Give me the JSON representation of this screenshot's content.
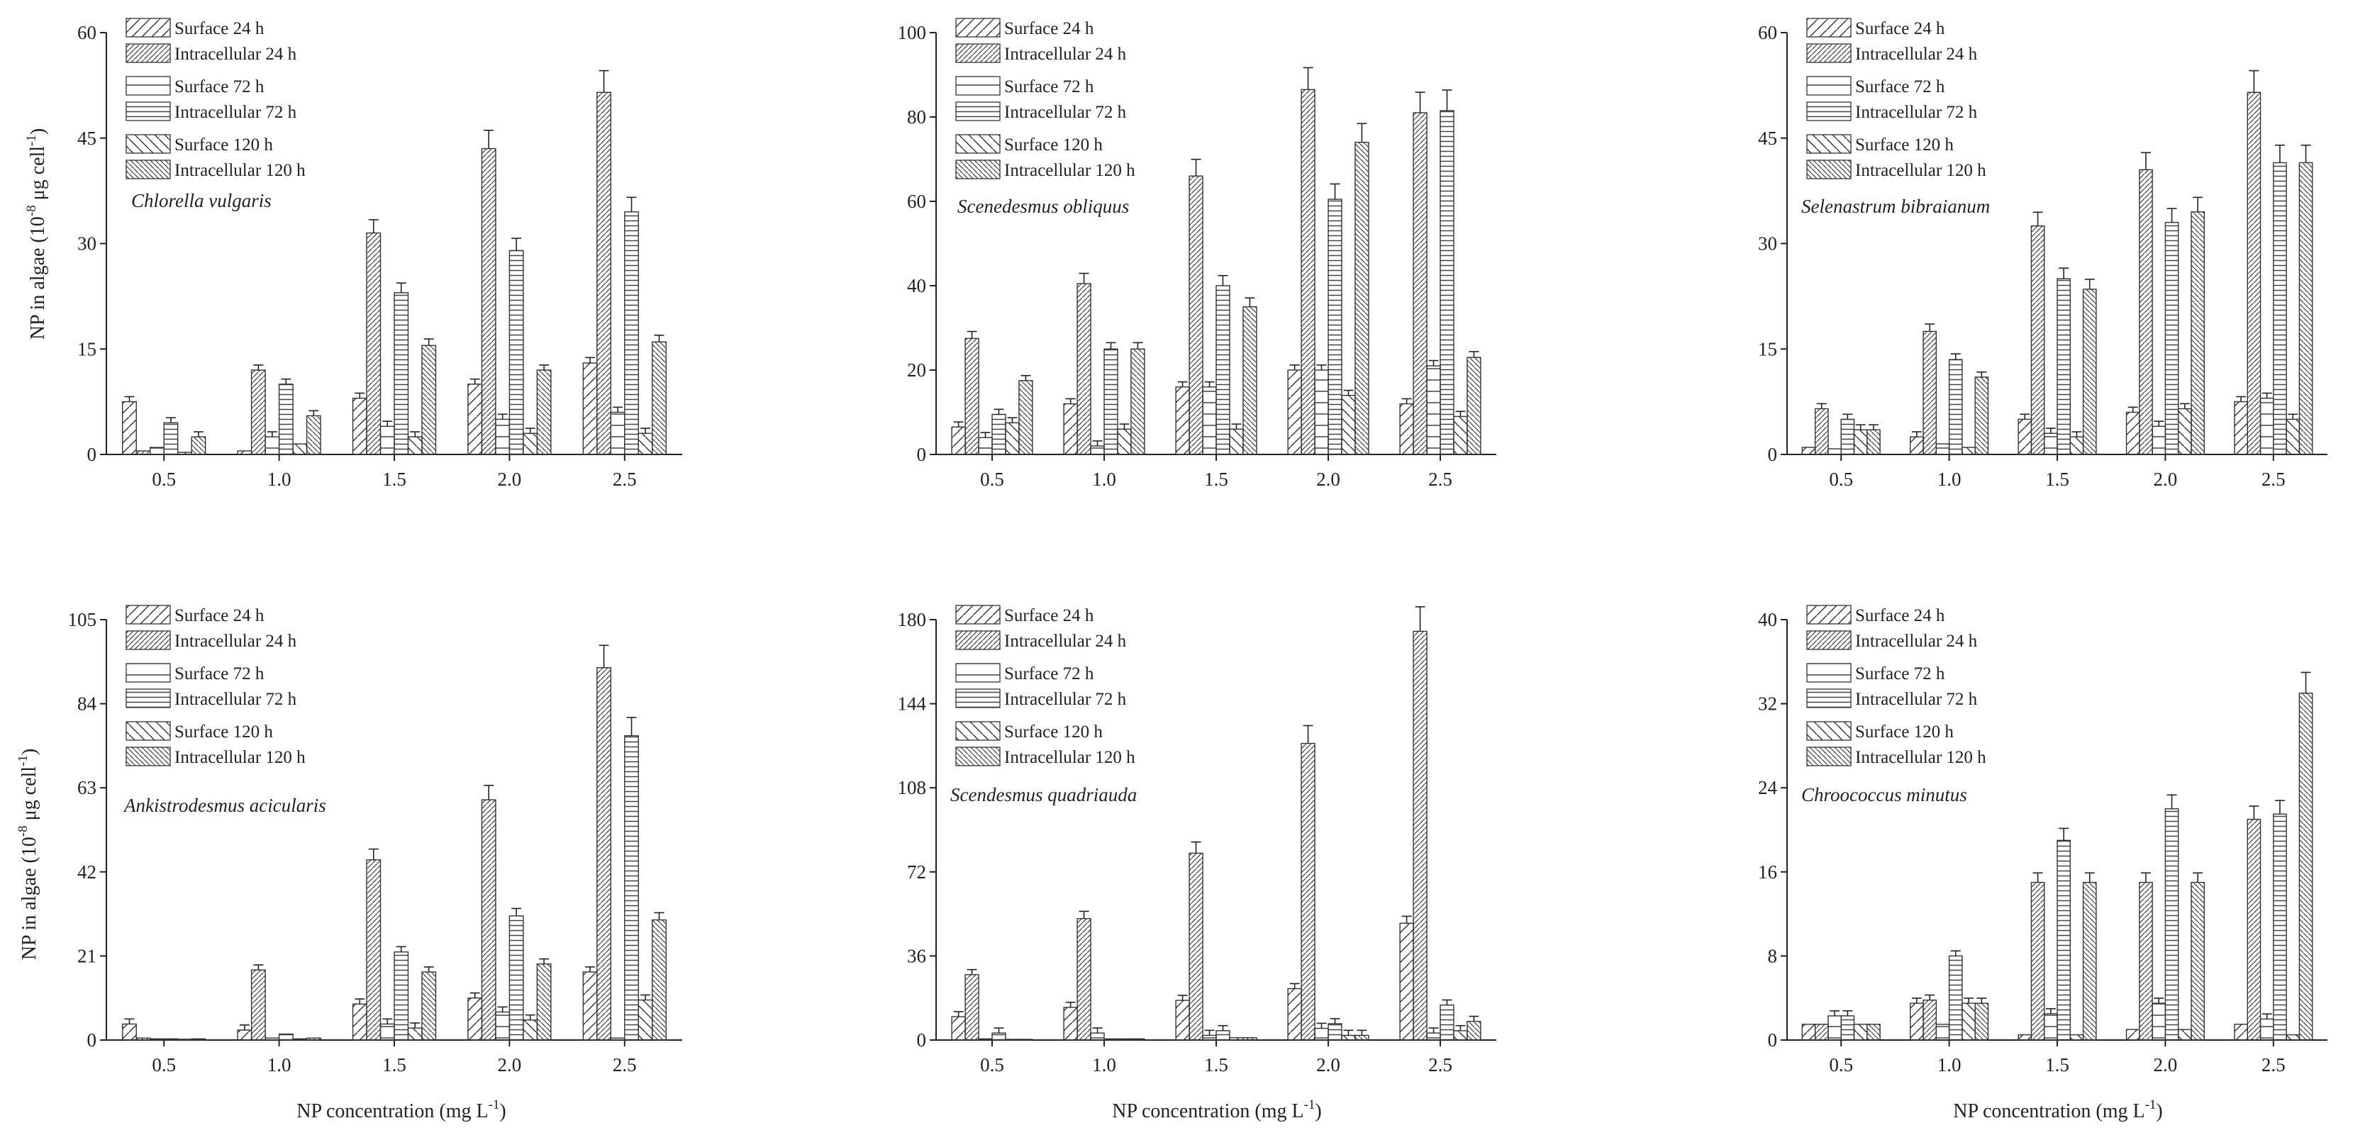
{
  "figure": {
    "y_label_prefix": "NP in algae (10",
    "y_label_exp1": "-8",
    "y_label_mid": " μg cell",
    "y_label_exp2": "-1",
    "y_label_suffix": ")",
    "x_label_prefix": "NP concentration (mg L",
    "x_label_exp": "-1",
    "x_label_suffix": ")"
  },
  "series_patterns": [
    "diag",
    "diagDense",
    "hline",
    "hlineDense",
    "anti",
    "antiDense"
  ],
  "chart_data": [
    {
      "type": "bar",
      "title": "Chlorella vulgaris",
      "categories": [
        "0.5",
        "1.0",
        "1.5",
        "2.0",
        "2.5"
      ],
      "ylim": [
        0,
        60
      ],
      "yticks": [
        0,
        15,
        30,
        45,
        60
      ],
      "series": [
        {
          "name": "Surface 24 h",
          "values": [
            7.5,
            0.5,
            8,
            10,
            13
          ]
        },
        {
          "name": "Intracellular  24 h",
          "values": [
            0.5,
            12,
            31.5,
            43.5,
            51.5
          ]
        },
        {
          "name": "Surface 72 h",
          "values": [
            1,
            2.5,
            4,
            5,
            6
          ]
        },
        {
          "name": "Intracellular  72 h",
          "values": [
            4.5,
            10,
            23,
            29,
            34.5
          ]
        },
        {
          "name": "Surface 120 h",
          "values": [
            0.3,
            1.5,
            2.5,
            3,
            3
          ]
        },
        {
          "name": "Intracellular  120 h",
          "values": [
            2.5,
            5.5,
            15.5,
            12,
            16
          ]
        }
      ]
    },
    {
      "type": "bar",
      "title": "Scenedesmus obliquus",
      "categories": [
        "0.5",
        "1.0",
        "1.5",
        "2.0",
        "2.5"
      ],
      "ylim": [
        0,
        100
      ],
      "yticks": [
        0,
        20,
        40,
        60,
        80,
        100
      ],
      "series": [
        {
          "name": "Surface 24 h",
          "values": [
            6.5,
            12,
            16,
            20,
            12
          ]
        },
        {
          "name": "Intracellular  24 h",
          "values": [
            27.5,
            40.5,
            66,
            86.5,
            81
          ]
        },
        {
          "name": "Surface 72 h",
          "values": [
            4,
            2,
            16,
            20,
            21
          ]
        },
        {
          "name": "Intracellular  72 h",
          "values": [
            9.5,
            25,
            40,
            60.5,
            81.5
          ]
        },
        {
          "name": "Surface 120 h",
          "values": [
            7.5,
            6,
            6,
            14,
            9
          ]
        },
        {
          "name": "Intracellular  120 h",
          "values": [
            17.5,
            25,
            35,
            74,
            23
          ]
        }
      ]
    },
    {
      "type": "bar",
      "title": "Selenastrum bibraianum",
      "categories": [
        "0.5",
        "1.0",
        "1.5",
        "2.0",
        "2.5"
      ],
      "ylim": [
        0,
        60
      ],
      "yticks": [
        0,
        15,
        30,
        45,
        60
      ],
      "series": [
        {
          "name": "Surface 24 h",
          "values": [
            1,
            2.5,
            5,
            6,
            7.5
          ]
        },
        {
          "name": "Intracellular  24 h",
          "values": [
            6.5,
            17.5,
            32.5,
            40.5,
            51.5
          ]
        },
        {
          "name": "Surface 72 h",
          "values": [
            0.8,
            1.5,
            3,
            4,
            8
          ]
        },
        {
          "name": "Intracellular  72 h",
          "values": [
            5,
            13.5,
            25,
            33,
            41.5
          ]
        },
        {
          "name": "Surface 120 h",
          "values": [
            3.5,
            1,
            2.5,
            6.5,
            5
          ]
        },
        {
          "name": "Intracellular  120 h",
          "values": [
            3.5,
            11,
            23.5,
            34.5,
            41.5
          ]
        }
      ]
    },
    {
      "type": "bar",
      "title": "Ankistrodesmus acicularis",
      "categories": [
        "0.5",
        "1.0",
        "1.5",
        "2.0",
        "2.5"
      ],
      "ylim": [
        0,
        105
      ],
      "yticks": [
        0,
        21,
        42,
        63,
        84,
        105
      ],
      "series": [
        {
          "name": "Surface 24 h",
          "values": [
            4,
            2.5,
            9,
            10.5,
            17
          ]
        },
        {
          "name": "Intracellular  24 h",
          "values": [
            0.5,
            17.5,
            45,
            60,
            93
          ]
        },
        {
          "name": "Surface 72 h",
          "values": [
            0.3,
            0.5,
            4,
            7,
            0.5
          ]
        },
        {
          "name": "Intracellular  72 h",
          "values": [
            0.3,
            1.5,
            22,
            31,
            76
          ]
        },
        {
          "name": "Surface 120 h",
          "values": [
            0.2,
            0.3,
            3,
            5,
            10
          ]
        },
        {
          "name": "Intracellular  120 h",
          "values": [
            0.3,
            0.5,
            17,
            19,
            30
          ]
        }
      ]
    },
    {
      "type": "bar",
      "title": "Scendesmus quadriauda",
      "categories": [
        "0.5",
        "1.0",
        "1.5",
        "2.0",
        "2.5"
      ],
      "ylim": [
        0,
        180
      ],
      "yticks": [
        0,
        36,
        72,
        108,
        144,
        180
      ],
      "series": [
        {
          "name": "Surface 24 h",
          "values": [
            10,
            14,
            17,
            22,
            50
          ]
        },
        {
          "name": "Intracellular  24 h",
          "values": [
            28,
            52,
            80,
            127,
            175
          ]
        },
        {
          "name": "Surface 72 h",
          "values": [
            0.5,
            3,
            2,
            5,
            3
          ]
        },
        {
          "name": "Intracellular  72 h",
          "values": [
            3,
            0.5,
            4,
            7,
            15
          ]
        },
        {
          "name": "Surface 120 h",
          "values": [
            0.3,
            0.5,
            1,
            2,
            4
          ]
        },
        {
          "name": "Intracellular  120 h",
          "values": [
            0.3,
            0.5,
            1,
            2,
            8
          ]
        }
      ]
    },
    {
      "type": "bar",
      "title": "Chroococcus minutus",
      "categories": [
        "0.5",
        "1.0",
        "1.5",
        "2.0",
        "2.5"
      ],
      "ylim": [
        0,
        40
      ],
      "yticks": [
        0,
        8,
        16,
        24,
        32,
        40
      ],
      "series": [
        {
          "name": "Surface 24 h",
          "values": [
            1.5,
            3.5,
            0.5,
            1,
            1.5
          ]
        },
        {
          "name": "Intracellular  24 h",
          "values": [
            1.5,
            3.8,
            15,
            15,
            21
          ]
        },
        {
          "name": "Surface 72 h",
          "values": [
            2.3,
            1.5,
            2.5,
            3.5,
            2
          ]
        },
        {
          "name": "Intracellular  72 h",
          "values": [
            2.3,
            8,
            19,
            22,
            21.5
          ]
        },
        {
          "name": "Surface 120 h",
          "values": [
            1.5,
            3.5,
            0.5,
            1,
            0.5
          ]
        },
        {
          "name": "Intracellular  120 h",
          "values": [
            1.5,
            3.5,
            15,
            15,
            33
          ]
        }
      ]
    }
  ]
}
